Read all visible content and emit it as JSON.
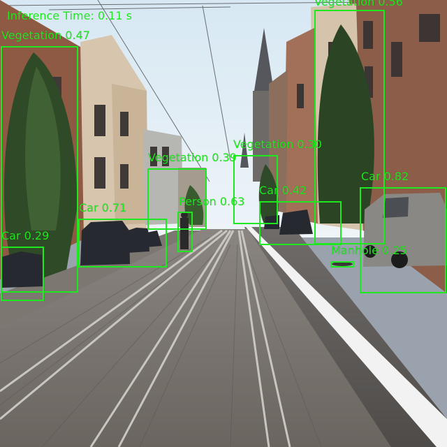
{
  "inference_time_text": "Inference Time: 0.11 s",
  "box_color": "#1ee81e",
  "detections": [
    {
      "label": "Vegetation 0.47"
    },
    {
      "label": "Vegetation 0.56"
    },
    {
      "label": "Vegetation 0.39"
    },
    {
      "label": "Vegetation 0.30"
    },
    {
      "label": "Car 0.82"
    },
    {
      "label": "Car 0.42"
    },
    {
      "label": "Car 0.71"
    },
    {
      "label": "Car 0.29"
    },
    {
      "label": "Person 0.63"
    },
    {
      "label": "Manhole 0.25"
    }
  ]
}
